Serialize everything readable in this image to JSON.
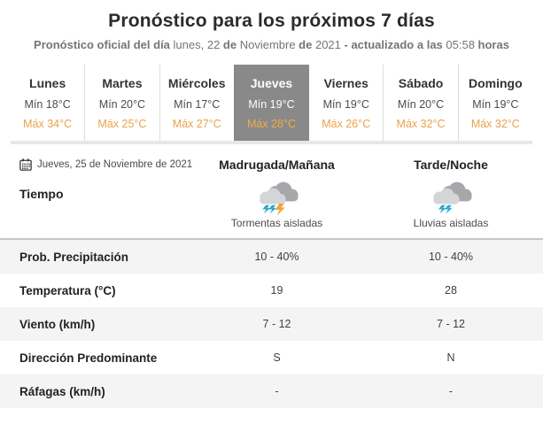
{
  "header": {
    "title": "Pronóstico para los próximos 7 días",
    "subtitle_segments": [
      {
        "text": "Pronóstico oficial del día ",
        "bold": true
      },
      {
        "text": "lunes, 22 ",
        "bold": false
      },
      {
        "text": "de ",
        "bold": true
      },
      {
        "text": "Noviembre ",
        "bold": false
      },
      {
        "text": "de ",
        "bold": true
      },
      {
        "text": "2021 ",
        "bold": false
      },
      {
        "text": "- actualizado a las ",
        "bold": true
      },
      {
        "text": "05:58 ",
        "bold": false
      },
      {
        "text": "horas",
        "bold": true
      }
    ]
  },
  "tabs": [
    {
      "day": "Lunes",
      "min": "Mín 18°C",
      "max": "Máx 34°C",
      "selected": false
    },
    {
      "day": "Martes",
      "min": "Mín 20°C",
      "max": "Máx 25°C",
      "selected": false
    },
    {
      "day": "Miércoles",
      "min": "Mín 17°C",
      "max": "Máx 27°C",
      "selected": false
    },
    {
      "day": "Jueves",
      "min": "Mín 19°C",
      "max": "Máx 28°C",
      "selected": true
    },
    {
      "day": "Viernes",
      "min": "Mín 19°C",
      "max": "Máx 26°C",
      "selected": false
    },
    {
      "day": "Sábado",
      "min": "Mín 20°C",
      "max": "Máx 32°C",
      "selected": false
    },
    {
      "day": "Domingo",
      "min": "Mín 19°C",
      "max": "Máx 32°C",
      "selected": false
    }
  ],
  "detail": {
    "date": "Jueves, 25 de Noviembre de 2021",
    "calendar_icon": "calendar-icon",
    "columns": [
      "Madrugada/Mañana",
      "Tarde/Noche"
    ],
    "weather": {
      "label": "Tiempo",
      "cells": [
        {
          "icon": "storm-cloud-icon",
          "caption": "Tormentas aisladas"
        },
        {
          "icon": "rain-cloud-icon",
          "caption": "Lluvias aisladas"
        }
      ]
    },
    "rows": [
      {
        "label": "Prob. Precipitación",
        "values": [
          "10 - 40%",
          "10 - 40%"
        ]
      },
      {
        "label": "Temperatura (°C)",
        "values": [
          "19",
          "28"
        ]
      },
      {
        "label": "Viento (km/h)",
        "values": [
          "7 - 12",
          "7 - 12"
        ]
      },
      {
        "label": "Dirección Predominante",
        "values": [
          "S",
          "N"
        ]
      },
      {
        "label": "Ráfagas (km/h)",
        "values": [
          "-",
          "-"
        ]
      }
    ]
  },
  "colors": {
    "accent_max": "#e8a24a",
    "selected_tab_bg": "#898989",
    "row_stripe": "#f4f4f4",
    "cloud_back": "#a6a6ab",
    "cloud_front": "#d4d5d7",
    "rain_mark": "#2fa8cc",
    "storm_bolt": "#f0a43c"
  }
}
